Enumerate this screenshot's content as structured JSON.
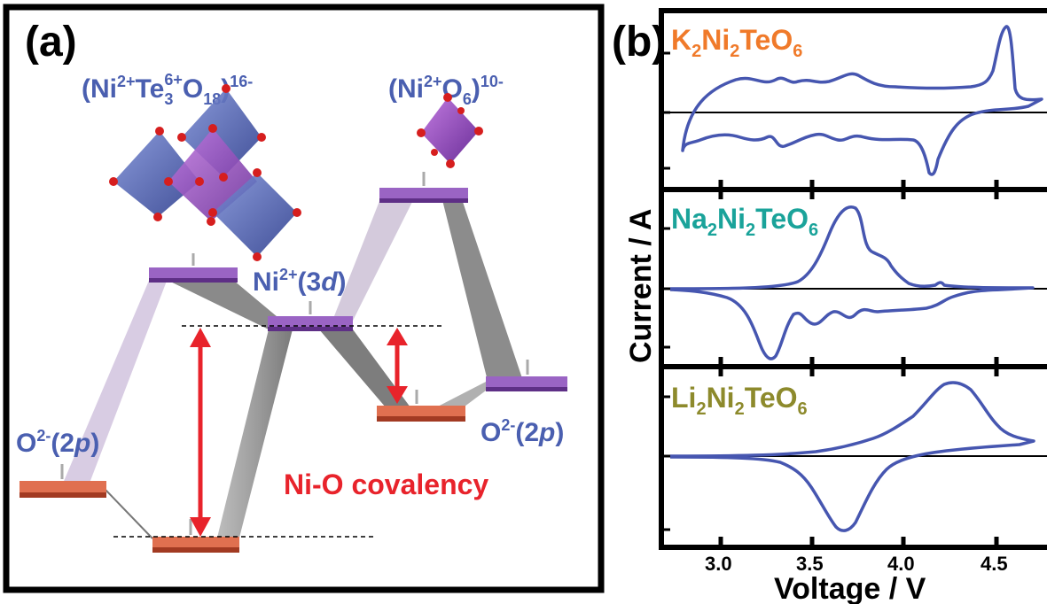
{
  "colors": {
    "blue": "#4a5fb0",
    "red": "#e8232b",
    "orange": "#f07a2a",
    "teal": "#1aa39a",
    "olive": "#8d8a2c",
    "curve": "#4656b0",
    "purple_plate": "#8e55b8",
    "orange_plate": "#d9603d"
  },
  "panel_a": {
    "tag": "(a)",
    "cluster_label": {
      "main": "(Ni",
      "sup1": "2+",
      "mid": "Te",
      "sub": "3",
      "sup2": "6+",
      "tail": "O",
      "sub2": "18",
      "close": ")",
      "sup3": "16-"
    },
    "octa_label": {
      "main": "(Ni",
      "sup1": "2+",
      "mid": "O",
      "sub": "6",
      "close": ")",
      "sup2": "10-"
    },
    "ni_label": {
      "main": "Ni",
      "sup": "2+",
      "tail": "(3",
      "italic": "d",
      "close": ")"
    },
    "o_left_label": {
      "main": "O",
      "sup": "2-",
      "tail": "(2",
      "italic": "p",
      "close": ")"
    },
    "o_right_label": {
      "main": "O",
      "sup": "2-",
      "tail": "(2",
      "italic": "p",
      "close": ")"
    },
    "covalency": "Ni-O covalency"
  },
  "panel_b": {
    "tag": "(b)",
    "ylabel": "Current / A",
    "xlabel": "Voltage / V",
    "ticks": [
      "3.0",
      "3.5",
      "4.0",
      "4.5"
    ],
    "traces": [
      {
        "name": "K",
        "label": {
          "a": "K",
          "as": "2",
          "b": "Ni",
          "bs": "2",
          "c": "TeO",
          "cs": "6"
        }
      },
      {
        "name": "Na",
        "label": {
          "a": "Na",
          "as": "2",
          "b": "Ni",
          "bs": "2",
          "c": "TeO",
          "cs": "6"
        }
      },
      {
        "name": "Li",
        "label": {
          "a": "Li",
          "as": "2",
          "b": "Ni",
          "bs": "2",
          "c": "TeO",
          "cs": "6"
        }
      }
    ]
  }
}
